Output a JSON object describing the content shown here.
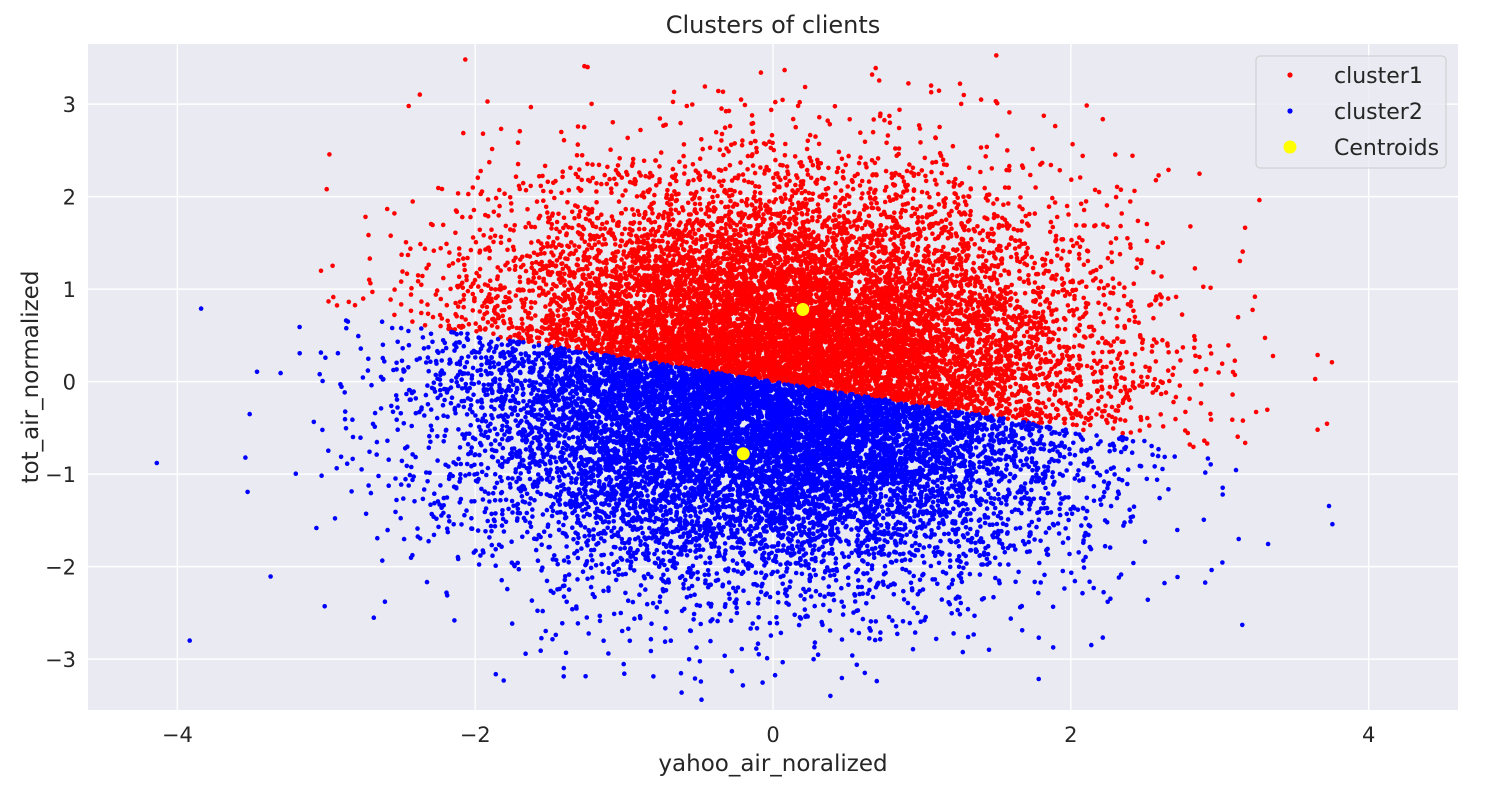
{
  "chart_data": {
    "type": "scatter",
    "title": "Clusters of clients",
    "xlabel": "yahoo_air_noralized",
    "ylabel": "tot_air_normalized",
    "xlim": [
      -4.6,
      4.6
    ],
    "ylim": [
      -3.55,
      3.65
    ],
    "x_ticks": [
      -4,
      -2,
      0,
      2,
      4
    ],
    "y_ticks": [
      -3,
      -2,
      -1,
      0,
      1,
      2,
      3
    ],
    "x_tick_labels": [
      "−4",
      "−2",
      "0",
      "2",
      "4"
    ],
    "y_tick_labels": [
      "−3",
      "−2",
      "−1",
      "0",
      "1",
      "2",
      "3"
    ],
    "grid": true,
    "background_color": "#eaeaf2",
    "grid_color": "#ffffff",
    "legend_position": "top-right",
    "series": [
      {
        "name": "cluster1",
        "color": "#ff0000",
        "center": [
          0.2,
          0.78
        ],
        "spread": [
          1.12,
          0.72
        ],
        "approx_count": 12000
      },
      {
        "name": "cluster2",
        "color": "#0000ff",
        "center": [
          -0.2,
          -0.78
        ],
        "spread": [
          0.95,
          0.62
        ],
        "approx_count": 12000
      },
      {
        "name": "Centroids",
        "color": "#ffff00",
        "points": [
          [
            0.2,
            0.78
          ],
          [
            -0.2,
            -0.78
          ]
        ]
      }
    ]
  }
}
